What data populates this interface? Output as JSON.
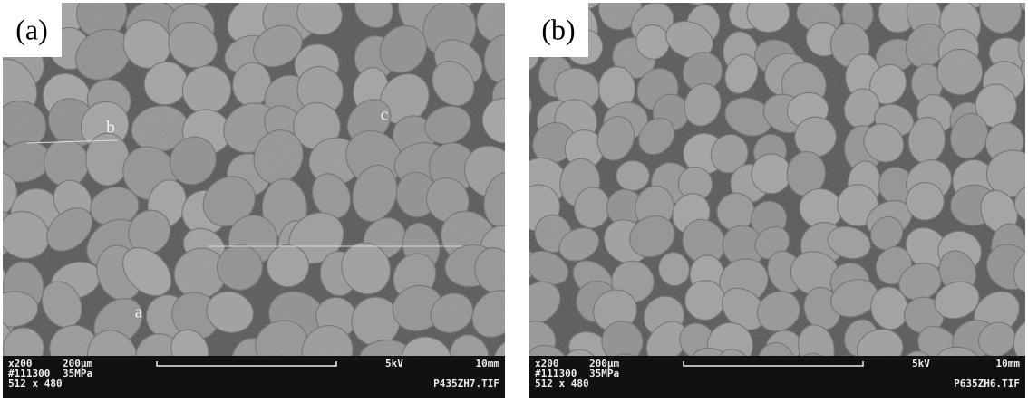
{
  "panels": [
    {
      "label": "(a)",
      "annotations": [
        "b",
        "c",
        "a"
      ],
      "footer": {
        "magnification": "x200",
        "scale": "200μm",
        "voltage": "5kV",
        "distance": "10mm",
        "id": "#111300",
        "pressure": "35MPa",
        "resolution": "512 x 480",
        "filename": "P435ZH7.TIF"
      }
    },
    {
      "label": "(b)",
      "annotations": [],
      "footer": {
        "magnification": "x200",
        "scale": "200μm",
        "voltage": "5kV",
        "distance": "10mm",
        "id": "#111300",
        "pressure": "35MPa",
        "resolution": "512 x 480",
        "filename": "P635ZH6.TIF"
      }
    }
  ]
}
